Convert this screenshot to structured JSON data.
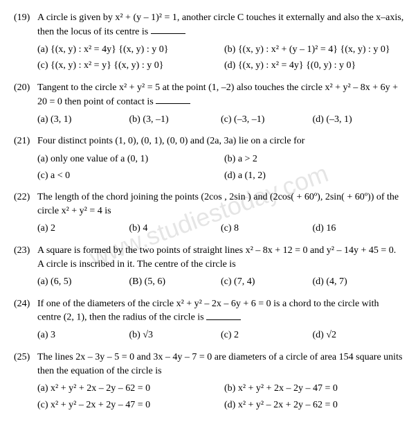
{
  "watermark": "www.studiestoday.com",
  "questions": [
    {
      "num": "(19)",
      "text": "A circle is given by x² + (y – 1)² = 1, another circle C touches it externally and also the x–axis, then the locus of its centre is ",
      "blank": true,
      "opt_layout": "two-col",
      "opts": [
        "(a) {(x, y) : x² = 4y}   {(x, y) : y   0}",
        "(b) {(x, y) : x² + (y – 1)² = 4}   {(x, y) : y   0}",
        "(c) {(x, y) : x² = y}   {(x, y) : y   0}",
        "(d) {(x, y) : x² = 4y}   {(0, y) : y   0}"
      ]
    },
    {
      "num": "(20)",
      "text": "Tangent to the circle x² + y² = 5 at the point (1, –2) also touches the circle x² + y² – 8x + 6y + 20 = 0 then point of contact is ",
      "blank": true,
      "opt_layout": "four-col",
      "opts": [
        "(a) (3, 1)",
        "(b) (3, –1)",
        "(c) (–3, –1)",
        "(d) (–3, 1)"
      ]
    },
    {
      "num": "(21)",
      "text": "Four distinct points (1, 0), (0, 1), (0, 0) and (2a, 3a) lie on a circle for",
      "blank": false,
      "opt_layout": "two-col",
      "opts": [
        "(a) only one value of a   (0, 1)",
        "(b) a > 2",
        "(c) a < 0",
        "(d) a   (1, 2)"
      ]
    },
    {
      "num": "(22)",
      "text": "The length of the chord joining the points (2cos , 2sin ) and (2cos(  + 60º), 2sin(  + 60º)) of the circle x² + y² = 4 is",
      "blank": false,
      "opt_layout": "four-col",
      "opts": [
        "(a) 2",
        "(b) 4",
        "(c) 8",
        "(d) 16"
      ]
    },
    {
      "num": "(23)",
      "text": "A square is formed by the two points of straight lines x² – 8x + 12 = 0 and y² – 14y + 45 = 0. A circle is inscribed in it. The centre of the circle is",
      "blank": false,
      "opt_layout": "four-col",
      "opts": [
        "(a) (6, 5)",
        "(B) (5, 6)",
        "(c) (7, 4)",
        "(d) (4, 7)"
      ]
    },
    {
      "num": "(24)",
      "text": "If one of the diameters of the circle x² + y² – 2x – 6y + 6 = 0 is a chord to the circle with centre (2, 1), then the radius of the circle is ",
      "blank": true,
      "opt_layout": "four-col",
      "opts": [
        "(a) 3",
        "(b) √3",
        "(c) 2",
        "(d) √2"
      ]
    },
    {
      "num": "(25)",
      "text": "The lines 2x – 3y – 5 = 0 and 3x – 4y – 7 = 0 are diameters of a circle of area 154 square units then the equation of the circle is",
      "blank": false,
      "opt_layout": "two-col",
      "opts": [
        "(a) x² + y² + 2x – 2y – 62 = 0",
        "(b) x² + y² + 2x – 2y – 47 = 0",
        "(c) x² + y² – 2x + 2y – 47 = 0",
        "(d) x² + y² – 2x + 2y – 62 = 0"
      ]
    }
  ]
}
